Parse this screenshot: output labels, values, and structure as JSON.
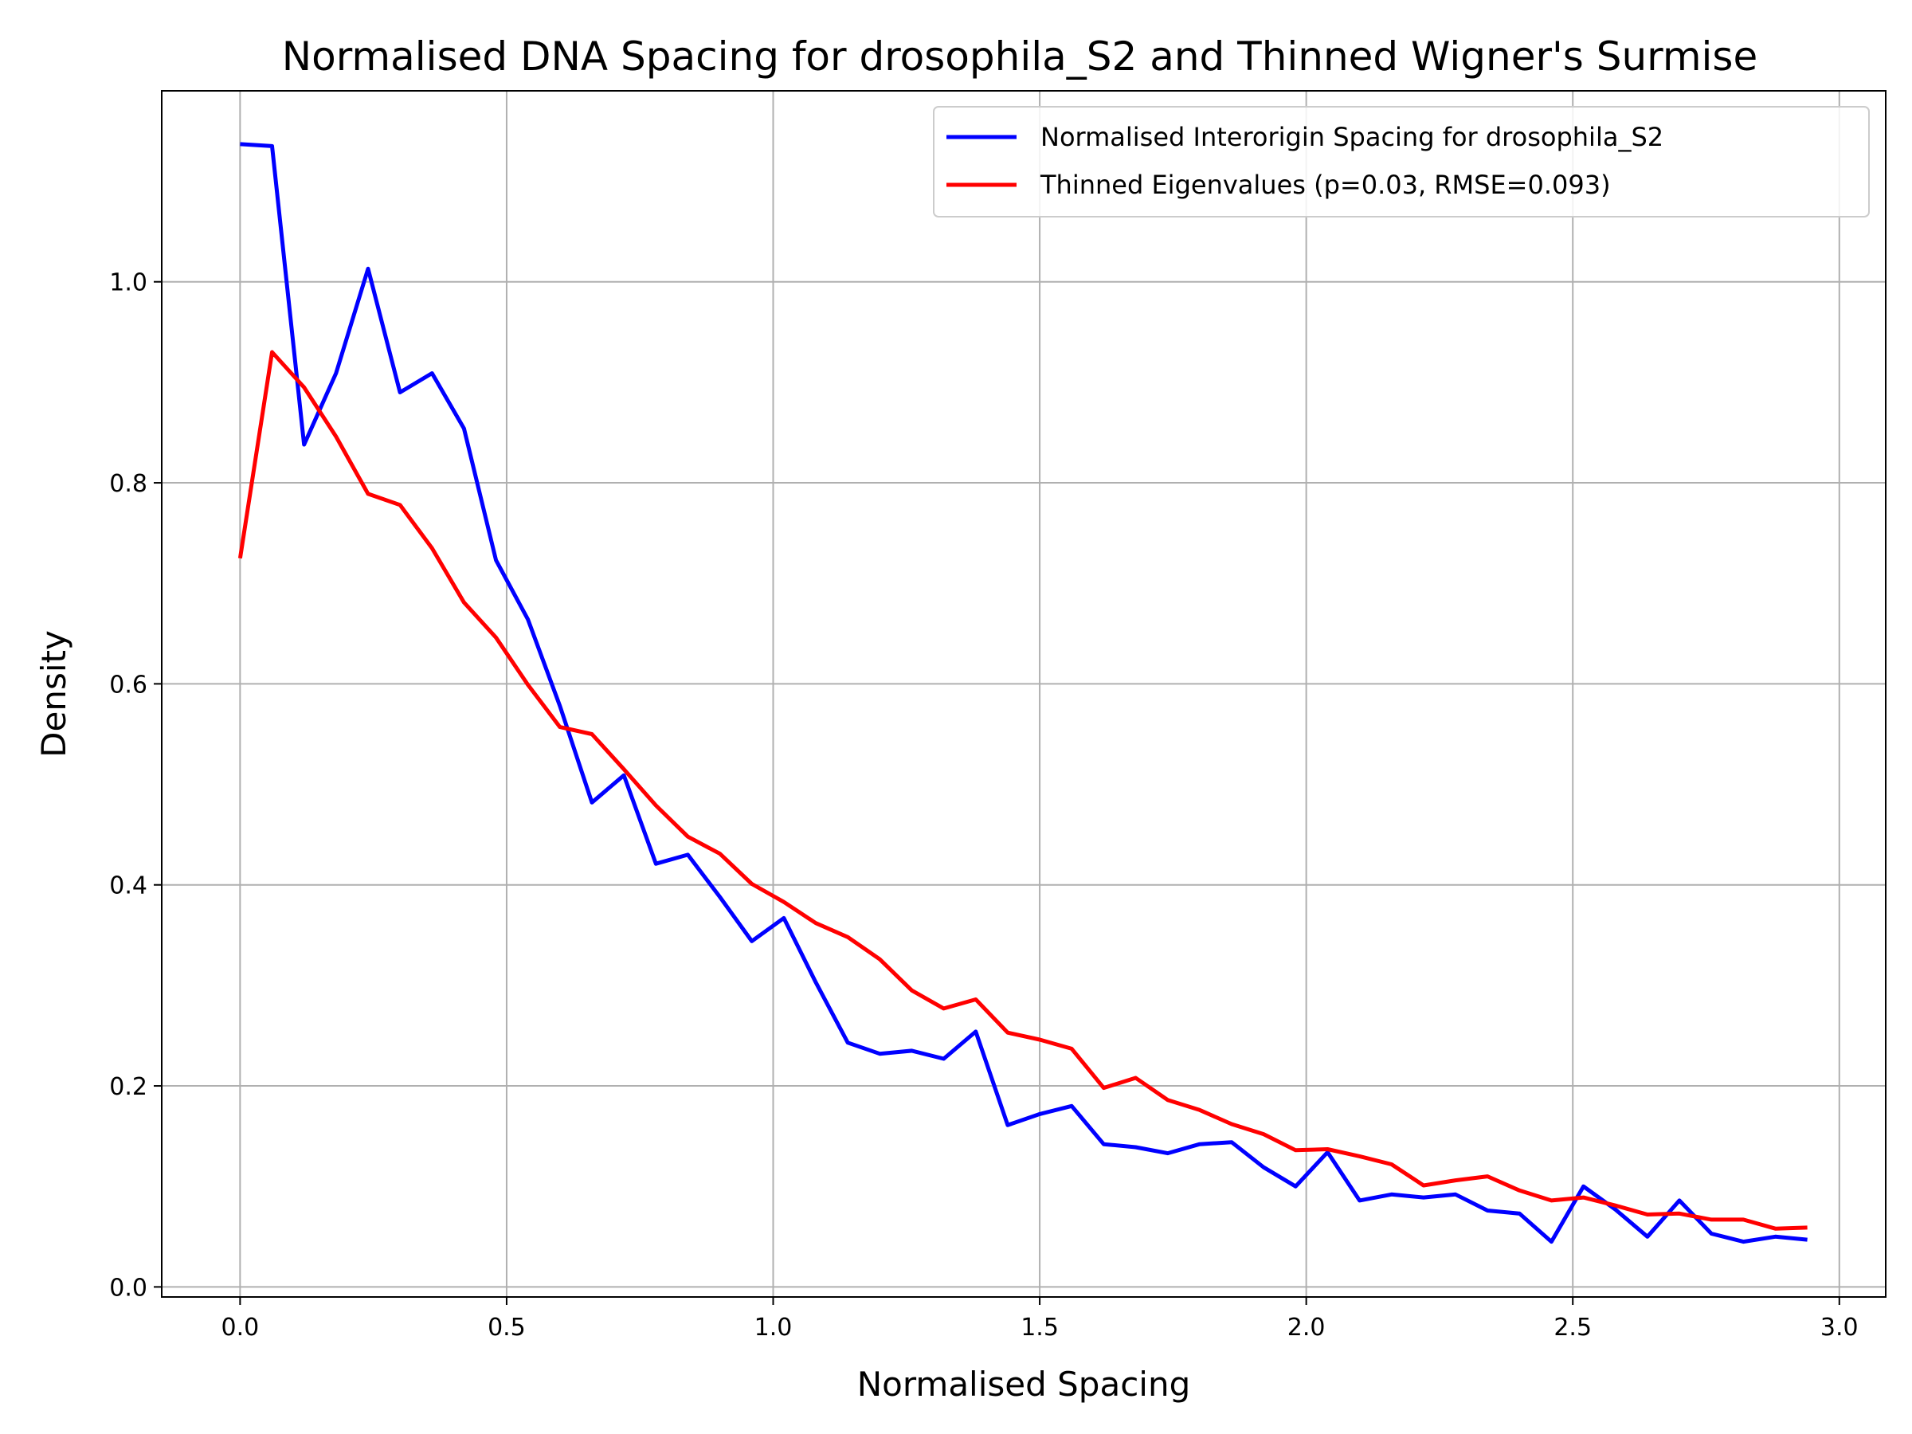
{
  "chart_data": {
    "type": "line",
    "title": "Normalised DNA Spacing for drosophila_S2 and Thinned Wigner's Surmise",
    "xlabel": "Normalised Spacing",
    "ylabel": "Density",
    "xlim": [
      -0.147,
      3.087
    ],
    "ylim": [
      -0.01,
      1.19
    ],
    "xticks": [
      0.0,
      0.5,
      1.0,
      1.5,
      2.0,
      2.5,
      3.0
    ],
    "xtick_labels": [
      "0.0",
      "0.5",
      "1.0",
      "1.5",
      "2.0",
      "2.5",
      "3.0"
    ],
    "yticks": [
      0.0,
      0.2,
      0.4,
      0.6,
      0.8,
      1.0
    ],
    "ytick_labels": [
      "0.0",
      "0.2",
      "0.4",
      "0.6",
      "0.8",
      "1.0"
    ],
    "grid": true,
    "legend_position": "top-right",
    "x": [
      0.0,
      0.06,
      0.12,
      0.18,
      0.24,
      0.3,
      0.36,
      0.42,
      0.48,
      0.54,
      0.6,
      0.66,
      0.72,
      0.78,
      0.84,
      0.9,
      0.96,
      1.02,
      1.08,
      1.14,
      1.2,
      1.26,
      1.32,
      1.38,
      1.44,
      1.5,
      1.56,
      1.62,
      1.68,
      1.74,
      1.8,
      1.86,
      1.92,
      1.98,
      2.04,
      2.1,
      2.16,
      2.22,
      2.28,
      2.34,
      2.4,
      2.46,
      2.52,
      2.58,
      2.64,
      2.7,
      2.76,
      2.82,
      2.88,
      2.94
    ],
    "series": [
      {
        "name": "Normalised Interorigin Spacing for drosophila_S2",
        "color": "#0000ff",
        "values": [
          1.137,
          1.135,
          0.838,
          0.909,
          1.013,
          0.89,
          0.909,
          0.854,
          0.723,
          0.664,
          0.578,
          0.482,
          0.509,
          0.421,
          0.43,
          0.388,
          0.344,
          0.367,
          0.303,
          0.243,
          0.232,
          0.235,
          0.227,
          0.254,
          0.161,
          0.172,
          0.18,
          0.142,
          0.139,
          0.133,
          0.142,
          0.144,
          0.119,
          0.1,
          0.134,
          0.086,
          0.092,
          0.089,
          0.092,
          0.076,
          0.073,
          0.045,
          0.1,
          0.077,
          0.05,
          0.086,
          0.053,
          0.045,
          0.05,
          0.047
        ]
      },
      {
        "name": "Thinned Eigenvalues (p=0.03, RMSE=0.093)",
        "color": "#ff0000",
        "values": [
          0.725,
          0.93,
          0.895,
          0.846,
          0.789,
          0.778,
          0.735,
          0.681,
          0.646,
          0.599,
          0.557,
          0.55,
          0.515,
          0.479,
          0.448,
          0.431,
          0.401,
          0.383,
          0.362,
          0.348,
          0.326,
          0.295,
          0.277,
          0.286,
          0.253,
          0.246,
          0.237,
          0.198,
          0.208,
          0.186,
          0.176,
          0.162,
          0.152,
          0.136,
          0.137,
          0.13,
          0.122,
          0.101,
          0.106,
          0.11,
          0.096,
          0.086,
          0.089,
          0.081,
          0.072,
          0.073,
          0.067,
          0.067,
          0.058,
          0.059
        ]
      }
    ]
  }
}
